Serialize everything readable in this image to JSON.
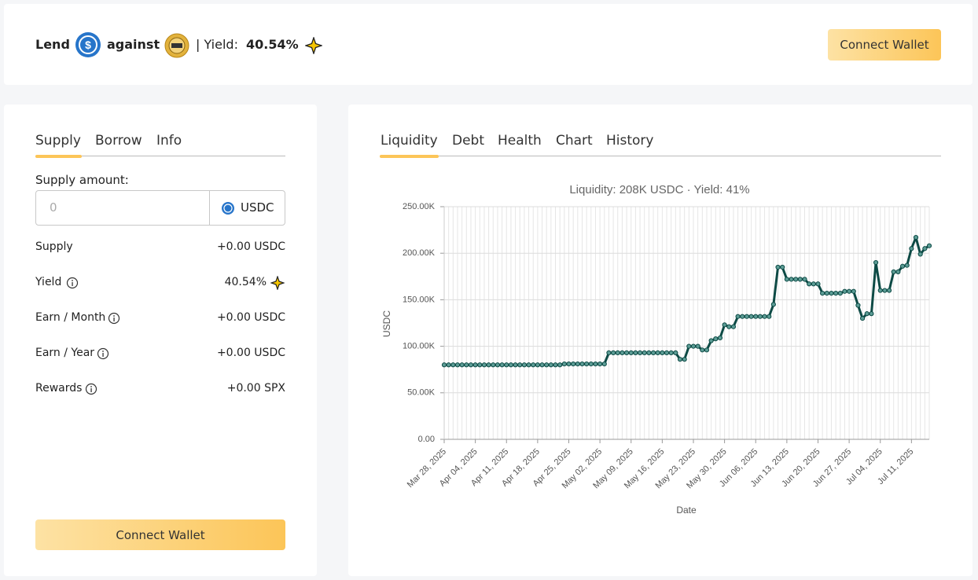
{
  "header": {
    "lend": "Lend",
    "against": "against",
    "yield_label": "| Yield:",
    "yield_value": "40.54%",
    "button": "Connect Wallet"
  },
  "left": {
    "tabs": [
      "Supply",
      "Borrow",
      "Info"
    ],
    "supply_amount_label": "Supply amount:",
    "input_placeholder": "0",
    "token": "USDC",
    "rows": [
      {
        "label": "Supply",
        "value": "+0.00 USDC"
      },
      {
        "label": "Yield",
        "value": "40.54%"
      },
      {
        "label": "Earn / Month",
        "value": "+0.00 USDC"
      },
      {
        "label": "Earn / Year",
        "value": "+0.00 USDC"
      },
      {
        "label": "Rewards",
        "value": "+0.00 SPX"
      }
    ],
    "button": "Connect Wallet"
  },
  "right": {
    "tabs": [
      "Liquidity",
      "Debt",
      "Health",
      "Chart",
      "History"
    ]
  },
  "chart_data": {
    "type": "line",
    "title": "Liquidity: 208K USDC · Yield: 41%",
    "x_label": "Date",
    "y_label": "USDC",
    "color": "#0d4a45",
    "grid": true,
    "x": [
      "2025-03-28",
      "2025-03-29",
      "2025-03-30",
      "2025-03-31",
      "2025-04-01",
      "2025-04-02",
      "2025-04-03",
      "2025-04-04",
      "2025-04-05",
      "2025-04-06",
      "2025-04-07",
      "2025-04-08",
      "2025-04-09",
      "2025-04-10",
      "2025-04-11",
      "2025-04-12",
      "2025-04-13",
      "2025-04-14",
      "2025-04-15",
      "2025-04-16",
      "2025-04-17",
      "2025-04-18",
      "2025-04-19",
      "2025-04-20",
      "2025-04-21",
      "2025-04-22",
      "2025-04-23",
      "2025-04-24",
      "2025-04-25",
      "2025-04-26",
      "2025-04-27",
      "2025-04-28",
      "2025-04-29",
      "2025-04-30",
      "2025-05-01",
      "2025-05-02",
      "2025-05-03",
      "2025-05-04",
      "2025-05-05",
      "2025-05-06",
      "2025-05-07",
      "2025-05-08",
      "2025-05-09",
      "2025-05-10",
      "2025-05-11",
      "2025-05-12",
      "2025-05-13",
      "2025-05-14",
      "2025-05-15",
      "2025-05-16",
      "2025-05-17",
      "2025-05-18",
      "2025-05-19",
      "2025-05-20",
      "2025-05-21",
      "2025-05-22",
      "2025-05-23",
      "2025-05-24",
      "2025-05-25",
      "2025-05-26",
      "2025-05-27",
      "2025-05-28",
      "2025-05-29",
      "2025-05-30",
      "2025-05-31",
      "2025-06-01",
      "2025-06-02",
      "2025-06-03",
      "2025-06-04",
      "2025-06-05",
      "2025-06-06",
      "2025-06-07",
      "2025-06-08",
      "2025-06-09",
      "2025-06-10",
      "2025-06-11",
      "2025-06-12",
      "2025-06-13",
      "2025-06-14",
      "2025-06-15",
      "2025-06-16",
      "2025-06-17",
      "2025-06-18",
      "2025-06-19",
      "2025-06-20",
      "2025-06-21",
      "2025-06-22",
      "2025-06-23",
      "2025-06-24",
      "2025-06-25",
      "2025-06-26",
      "2025-06-27",
      "2025-06-28",
      "2025-06-29",
      "2025-06-30",
      "2025-07-01",
      "2025-07-02",
      "2025-07-03",
      "2025-07-04",
      "2025-07-05",
      "2025-07-06",
      "2025-07-07",
      "2025-07-08",
      "2025-07-09",
      "2025-07-10",
      "2025-07-11",
      "2025-07-12",
      "2025-07-13",
      "2025-07-14",
      "2025-07-15"
    ],
    "values": [
      80000,
      80000,
      80000,
      80000,
      80000,
      80000,
      80000,
      80000,
      80000,
      80000,
      80000,
      80000,
      80000,
      80000,
      80000,
      80000,
      80000,
      80000,
      80000,
      80000,
      80000,
      80000,
      80000,
      80000,
      80000,
      80000,
      80000,
      81000,
      81000,
      81000,
      81000,
      81000,
      81000,
      81000,
      81000,
      81000,
      81000,
      93000,
      93000,
      93000,
      93000,
      93000,
      93000,
      93000,
      93000,
      93000,
      93000,
      93000,
      93000,
      93000,
      93000,
      93000,
      93000,
      86000,
      86000,
      100000,
      100000,
      100000,
      96000,
      96000,
      106000,
      108000,
      109000,
      123000,
      121000,
      121000,
      132000,
      132000,
      132000,
      132000,
      132000,
      132000,
      132000,
      132000,
      145000,
      185000,
      185000,
      172000,
      172000,
      172000,
      172000,
      172000,
      167000,
      167000,
      167000,
      157000,
      157000,
      157000,
      157000,
      157000,
      159000,
      159000,
      159000,
      144000,
      130000,
      135000,
      135000,
      190000,
      160000,
      160000,
      160000,
      180000,
      180000,
      186000,
      187000,
      205000,
      217000,
      199000,
      205000,
      208000
    ],
    "xlim": [
      "2025-03-28",
      "2025-07-15"
    ],
    "xticks": [
      {
        "value": "2025-03-28",
        "label": "Mar 28, 2025"
      },
      {
        "value": "2025-04-04",
        "label": "Apr 04, 2025"
      },
      {
        "value": "2025-04-11",
        "label": "Apr 11, 2025"
      },
      {
        "value": "2025-04-18",
        "label": "Apr 18, 2025"
      },
      {
        "value": "2025-04-25",
        "label": "Apr 25, 2025"
      },
      {
        "value": "2025-05-02",
        "label": "May 02, 2025"
      },
      {
        "value": "2025-05-09",
        "label": "May 09, 2025"
      },
      {
        "value": "2025-05-16",
        "label": "May 16, 2025"
      },
      {
        "value": "2025-05-23",
        "label": "May 23, 2025"
      },
      {
        "value": "2025-05-30",
        "label": "May 30, 2025"
      },
      {
        "value": "2025-06-06",
        "label": "Jun 06, 2025"
      },
      {
        "value": "2025-06-13",
        "label": "Jun 13, 2025"
      },
      {
        "value": "2025-06-20",
        "label": "Jun 20, 2025"
      },
      {
        "value": "2025-06-27",
        "label": "Jun 27, 2025"
      },
      {
        "value": "2025-07-04",
        "label": "Jul 04, 2025"
      },
      {
        "value": "2025-07-11",
        "label": "Jul 11, 2025"
      }
    ],
    "ylim": [
      0,
      250000
    ],
    "yticks": [
      {
        "value": 0,
        "label": "0.00"
      },
      {
        "value": 50000,
        "label": "50.00K"
      },
      {
        "value": 100000,
        "label": "100.00K"
      },
      {
        "value": 150000,
        "label": "150.00K"
      },
      {
        "value": 200000,
        "label": "200.00K"
      },
      {
        "value": 250000,
        "label": "250.00K"
      }
    ]
  }
}
